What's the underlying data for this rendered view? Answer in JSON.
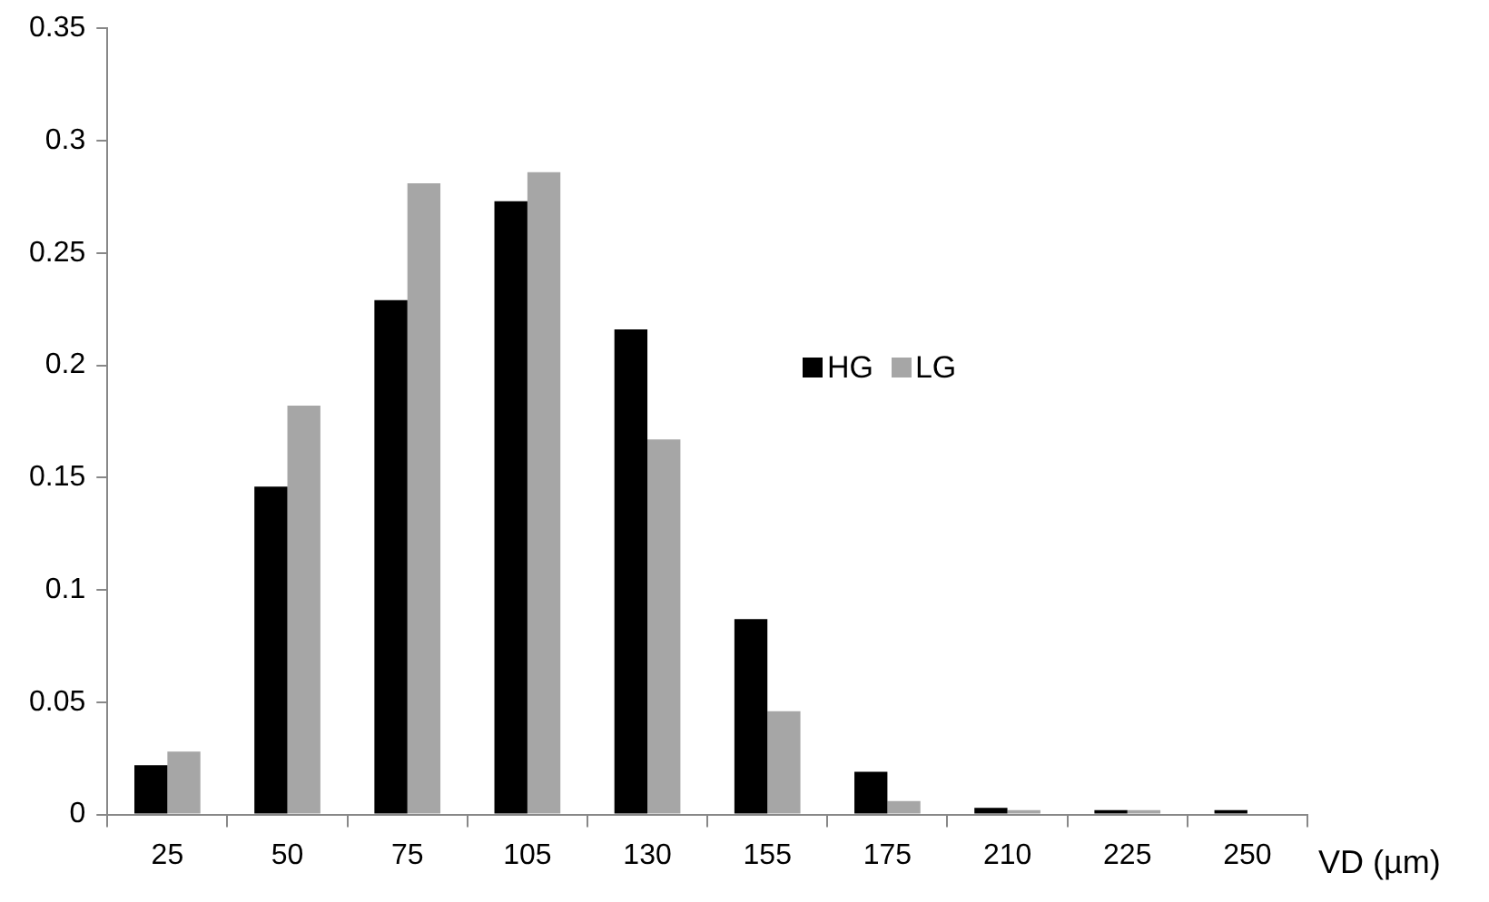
{
  "chart_data": {
    "type": "bar",
    "xlabel": "VD (µm)",
    "categories": [
      "25",
      "50",
      "75",
      "105",
      "130",
      "155",
      "175",
      "210",
      "225",
      "250"
    ],
    "series": [
      {
        "name": "HG",
        "color": "#000000",
        "values": [
          0.022,
          0.146,
          0.229,
          0.273,
          0.216,
          0.087,
          0.019,
          0.003,
          0.002,
          0.002
        ]
      },
      {
        "name": "LG",
        "color": "#a6a6a6",
        "values": [
          0.028,
          0.182,
          0.281,
          0.286,
          0.167,
          0.046,
          0.006,
          0.002,
          0.002,
          0
        ]
      }
    ],
    "ylim": [
      0,
      0.35
    ],
    "yticks": [
      0,
      0.05,
      0.1,
      0.15,
      0.2,
      0.25,
      0.3,
      0.35
    ],
    "grid": false,
    "legend": "center"
  }
}
